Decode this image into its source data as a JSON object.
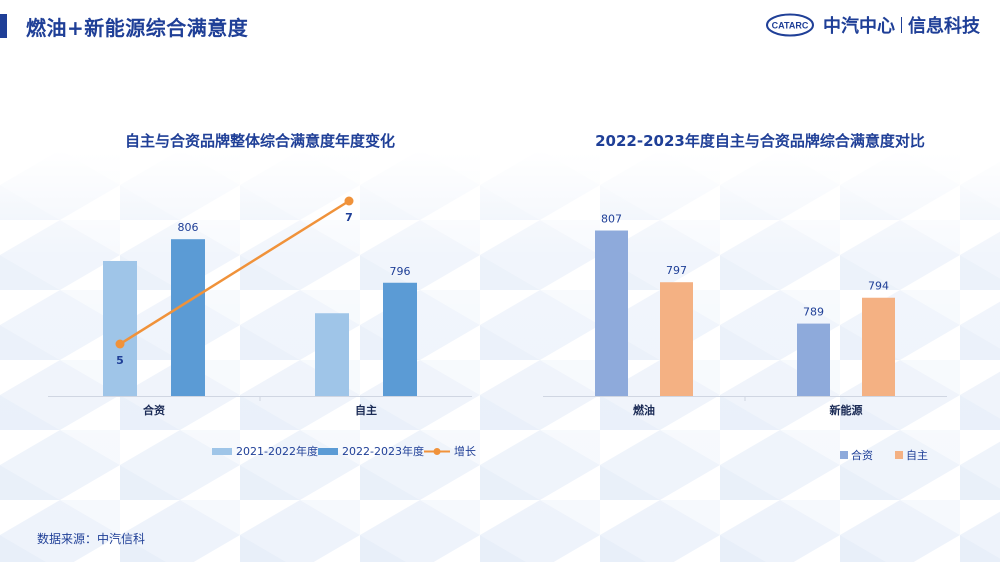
{
  "header": {
    "title": "燃油+新能源综合满意度",
    "brand_name": "中汽中心",
    "brand_sub": "信息科技",
    "logo_text": "CATARC"
  },
  "colors": {
    "accent": "#1f3f97",
    "series_2021": "#9fc5e8",
    "series_2022": "#5b9bd5",
    "growth_line": "#f0923a",
    "joint_venture": "#8eaadb",
    "domestic": "#f4b183"
  },
  "chart_data": [
    {
      "type": "bar",
      "title": "自主与合资品牌整体综合满意度年度变化",
      "categories": [
        "合资",
        "自主"
      ],
      "series": [
        {
          "name": "2021-2022年度",
          "values": [
            801,
            789
          ],
          "labels": [
            "",
            ""
          ]
        },
        {
          "name": "2022-2023年度",
          "values": [
            806,
            796
          ],
          "labels": [
            "806",
            "796"
          ]
        }
      ],
      "line_series": {
        "name": "增长",
        "values": [
          5,
          7
        ],
        "labels": [
          "5",
          "7"
        ],
        "ylim": [
          0,
          10
        ]
      },
      "ylim": [
        770,
        815
      ],
      "legend": "bottom",
      "grid": false
    },
    {
      "type": "bar",
      "title": "2022-2023年度自主与合资品牌综合满意度对比",
      "categories": [
        "燃油",
        "新能源"
      ],
      "series": [
        {
          "name": "合资",
          "values": [
            807,
            789
          ],
          "labels": [
            "807",
            "789"
          ]
        },
        {
          "name": "自主",
          "values": [
            797,
            794
          ],
          "labels": [
            "797",
            "794"
          ]
        }
      ],
      "ylim": [
        775,
        810
      ],
      "legend": "bottom-right",
      "grid": false
    }
  ],
  "footer": {
    "source": "数据来源：中汽信科"
  }
}
